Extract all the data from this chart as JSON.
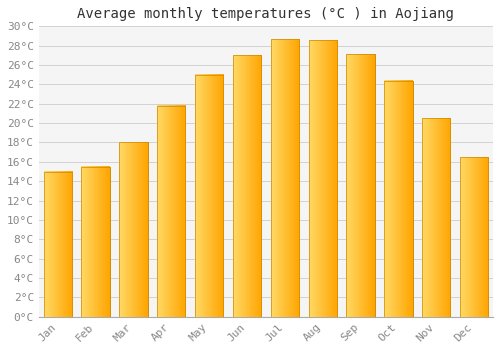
{
  "title": "Average monthly temperatures (°C ) in Aojiang",
  "months": [
    "Jan",
    "Feb",
    "Mar",
    "Apr",
    "May",
    "Jun",
    "Jul",
    "Aug",
    "Sep",
    "Oct",
    "Nov",
    "Dec"
  ],
  "values": [
    15,
    15.5,
    18,
    21.8,
    25,
    27,
    28.7,
    28.6,
    27.1,
    24.4,
    20.5,
    16.5
  ],
  "bar_color_left": "#FFD966",
  "bar_color_right": "#FFA500",
  "bar_color_mid": "#FFBB33",
  "background_color": "#FFFFFF",
  "plot_bg_color": "#F5F5F5",
  "grid_color": "#CCCCCC",
  "ylim": [
    0,
    30
  ],
  "ytick_step": 2,
  "title_fontsize": 10,
  "tick_fontsize": 8,
  "font_family": "monospace",
  "tick_color": "#888888",
  "bar_width": 0.75
}
